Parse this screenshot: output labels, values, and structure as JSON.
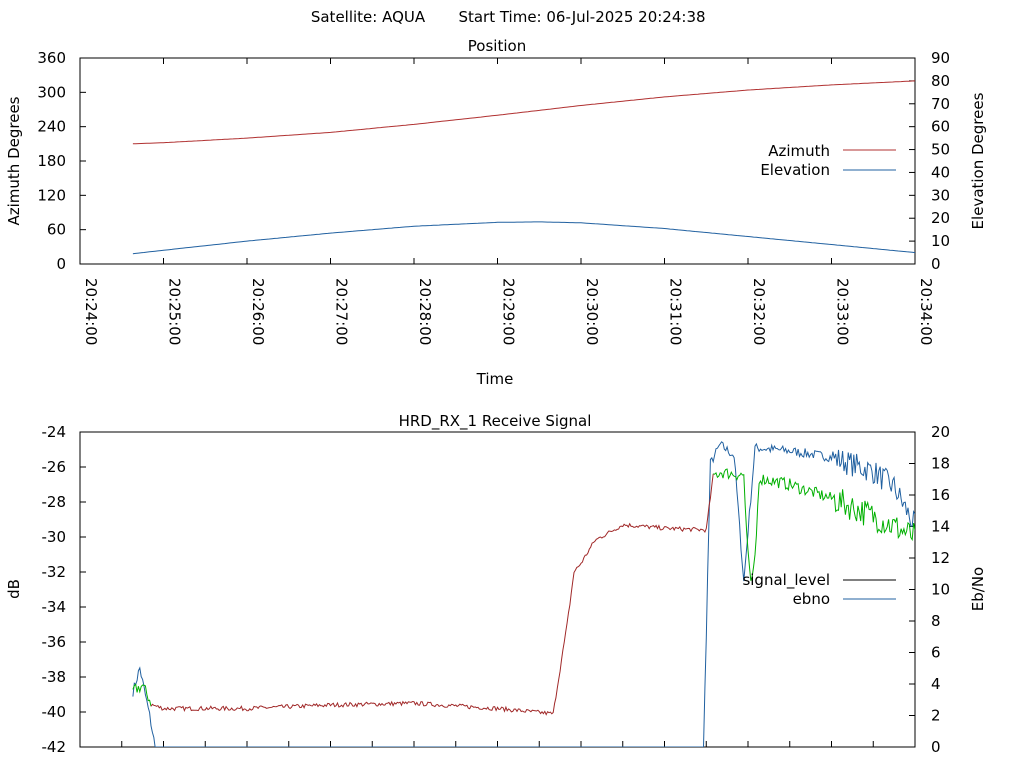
{
  "header": {
    "satellite": "Satellite: AQUA",
    "start_time": "Start Time: 06-Jul-2025 20:24:38"
  },
  "colors": {
    "azimuth": "#b03030",
    "elevation": "#2060a0",
    "signal_level": "#a02828",
    "ebno": "#2060a0",
    "ebno_green": "#00b000"
  },
  "chart_data": [
    {
      "type": "line",
      "title": "Position",
      "xlabel": "Time",
      "ylabel": "Azimuth Degrees",
      "y2label": "Elevation Degrees",
      "xlim": [
        "20:24:00",
        "20:34:00"
      ],
      "ylim": [
        0,
        360
      ],
      "y2lim": [
        0,
        90
      ],
      "x_ticks": [
        "20:24:00",
        "20:25:00",
        "20:26:00",
        "20:27:00",
        "20:28:00",
        "20:29:00",
        "20:30:00",
        "20:31:00",
        "20:32:00",
        "20:33:00",
        "20:34:00"
      ],
      "y_ticks": [
        "0",
        "60",
        "120",
        "180",
        "240",
        "300",
        "360"
      ],
      "y2_ticks": [
        "0",
        "10",
        "20",
        "30",
        "40",
        "50",
        "60",
        "70",
        "80",
        "90"
      ],
      "legend_position": "right",
      "series": [
        {
          "name": "Azimuth",
          "axis": "left",
          "x": [
            "20:24:38",
            "20:25:00",
            "20:26:00",
            "20:27:00",
            "20:28:00",
            "20:29:00",
            "20:30:00",
            "20:31:00",
            "20:32:00",
            "20:33:00",
            "20:34:00"
          ],
          "values": [
            210,
            212,
            220,
            230,
            244,
            260,
            277,
            292,
            304,
            313,
            320
          ]
        },
        {
          "name": "Elevation",
          "axis": "right",
          "x": [
            "20:24:38",
            "20:25:00",
            "20:26:00",
            "20:27:00",
            "20:28:00",
            "20:29:00",
            "20:29:30",
            "20:30:00",
            "20:31:00",
            "20:32:00",
            "20:33:00",
            "20:34:00"
          ],
          "values": [
            4.5,
            6,
            10,
            13.5,
            16.5,
            18.2,
            18.4,
            18,
            15.5,
            12,
            8.5,
            5
          ]
        }
      ]
    },
    {
      "type": "line",
      "title": "HRD_RX_1 Receive Signal",
      "ylabel": "dB",
      "y2label": "Eb/No",
      "xlim": [
        "20:24:00",
        "20:34:00"
      ],
      "ylim": [
        -42,
        -24
      ],
      "y2lim": [
        0,
        20
      ],
      "y_ticks": [
        "-42",
        "-40",
        "-38",
        "-36",
        "-34",
        "-32",
        "-30",
        "-28",
        "-26",
        "-24"
      ],
      "y2_ticks": [
        "0",
        "2",
        "4",
        "6",
        "8",
        "10",
        "12",
        "14",
        "16",
        "18",
        "20"
      ],
      "legend_position": "right",
      "series": [
        {
          "name": "signal_level",
          "axis": "left",
          "x": [
            "20:24:38",
            "20:24:45",
            "20:24:52",
            "20:25:00",
            "20:26:00",
            "20:27:00",
            "20:28:00",
            "20:29:00",
            "20:29:40",
            "20:29:50",
            "20:29:55",
            "20:30:00",
            "20:30:10",
            "20:30:30",
            "20:31:00",
            "20:31:30",
            "20:31:35",
            "20:31:40",
            "20:32:00",
            "20:32:30",
            "20:33:00",
            "20:33:30",
            "20:34:00"
          ],
          "values": [
            -38.8,
            -38.5,
            -39.6,
            -39.8,
            -39.8,
            -39.6,
            -39.5,
            -39.8,
            -40.1,
            -35,
            -32,
            -31.5,
            -30.2,
            -29.3,
            -29.5,
            -29.6,
            -26.5,
            -26.3,
            -26.5,
            -27,
            -27.8,
            -28.8,
            -30
          ]
        },
        {
          "name": "ebno",
          "axis": "right",
          "x": [
            "20:24:38",
            "20:24:43",
            "20:24:50",
            "20:24:54",
            "20:31:28",
            "20:31:33",
            "20:31:40",
            "20:31:50",
            "20:31:57",
            "20:32:05",
            "20:32:30",
            "20:33:00",
            "20:33:30",
            "20:33:45",
            "20:34:00"
          ],
          "values": [
            3.5,
            5,
            2,
            0,
            0,
            18,
            19.2,
            18.5,
            10.5,
            19,
            18.8,
            18.4,
            17.5,
            16.5,
            14
          ]
        }
      ]
    }
  ]
}
